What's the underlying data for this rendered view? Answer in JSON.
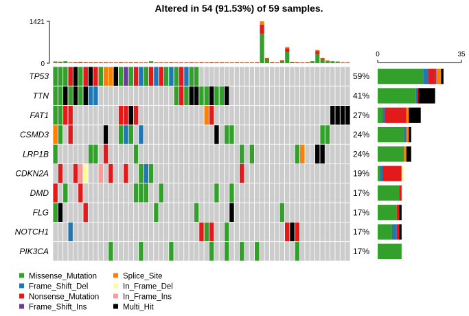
{
  "chart_data": {
    "type": "oncoplot",
    "title": "Altered in 54 (91.53%) of 59 samples.",
    "tmb_axis": {
      "min_label": "0",
      "max_label": "1421",
      "max": 1421
    },
    "gene_axis": {
      "min_label": "0",
      "max_label": "35",
      "max": 35
    },
    "genes": [
      {
        "name": "TP53",
        "pct": "59%"
      },
      {
        "name": "TTN",
        "pct": "41%"
      },
      {
        "name": "FAT1",
        "pct": "27%"
      },
      {
        "name": "CSMD3",
        "pct": "24%"
      },
      {
        "name": "LRP1B",
        "pct": "24%"
      },
      {
        "name": "CDKN2A",
        "pct": "19%"
      },
      {
        "name": "DMD",
        "pct": "17%"
      },
      {
        "name": "FLG",
        "pct": "17%"
      },
      {
        "name": "NOTCH1",
        "pct": "17%"
      },
      {
        "name": "PIK3CA",
        "pct": "17%"
      }
    ],
    "gene_bars": [
      {
        "Missense_Mutation": 19,
        "Frame_Shift_Del": 2,
        "Nonsense_Mutation": 3,
        "Frame_Shift_Ins": 0.5,
        "Splice_Site": 2,
        "Multi_Hit": 1
      },
      {
        "Missense_Mutation": 16,
        "Frame_Shift_Del": 0.5,
        "Nonsense_Mutation": 0.5,
        "Multi_Hit": 7
      },
      {
        "Missense_Mutation": 2,
        "Frame_Shift_Del": 1,
        "Nonsense_Mutation": 9,
        "Splice_Site": 1,
        "Multi_Hit": 5
      },
      {
        "Missense_Mutation": 11,
        "Frame_Shift_Del": 1,
        "Splice_Site": 1,
        "Multi_Hit": 1
      },
      {
        "Missense_Mutation": 11,
        "Splice_Site": 1,
        "Multi_Hit": 2
      },
      {
        "Missense_Mutation": 1,
        "Frame_Shift_Del": 1,
        "Nonsense_Mutation": 8,
        "In_Frame_Del": 1
      },
      {
        "Missense_Mutation": 9,
        "Nonsense_Mutation": 1
      },
      {
        "Missense_Mutation": 8,
        "Nonsense_Mutation": 1,
        "Multi_Hit": 1
      },
      {
        "Missense_Mutation": 6,
        "Frame_Shift_Del": 2,
        "Nonsense_Mutation": 1,
        "Multi_Hit": 1
      },
      {
        "Missense_Mutation": 10
      }
    ],
    "tmb": [
      60,
      55,
      65,
      35,
      45,
      50,
      42,
      38,
      40,
      40,
      42,
      30,
      35,
      45,
      35,
      40,
      42,
      35,
      35,
      65,
      35,
      25,
      30,
      42,
      20,
      35,
      25,
      40,
      30,
      42,
      35,
      45,
      40,
      40,
      25,
      30,
      40,
      25,
      30,
      35,
      40,
      1421,
      180,
      45,
      30,
      100,
      550,
      50,
      40,
      30,
      40,
      70,
      450,
      180,
      90,
      70,
      60,
      30,
      30
    ],
    "matrix_codes": "M=Missense_Mutation F=Frame_Shift_Del N=Nonsense_Mutation I=Frame_Shift_Ins S=Splice_Site D=In_Frame_Del R=In_Frame_Ins H=Multi_Hit .=none",
    "matrix": [
      "MMMNHMNHNMSSHMIMNFMNFNMFMNFMM..............................",
      "MMHMHMHFF...............MNMHHMMHMMH.......................",
      "MMNN.........NNHN.............SN.......................HHHH",
      "SM.N......H..MFM.F..............H.MM.................MM...",
      "M......MM.N.....M....................M.M........MS..HH.....",
      ".N..NRD..R.N..N..MFM.................N....................",
      "N.M..N..........MMM..M..........M..M......................",
      "MH....N.............M.......M......H.........M...........",
      "...F.........................NMN..M...........NHN.........",
      "...........M.....M.....M.......M..M..M..M.......M........."
    ],
    "legend": [
      {
        "label": "Missense_Mutation",
        "color": "#33a02c"
      },
      {
        "label": "Splice_Site",
        "color": "#ff7f00"
      },
      {
        "label": "Frame_Shift_Del",
        "color": "#1f78b4"
      },
      {
        "label": "In_Frame_Del",
        "color": "#ffff99"
      },
      {
        "label": "Nonsense_Mutation",
        "color": "#e31a1c"
      },
      {
        "label": "In_Frame_Ins",
        "color": "#fb9a99"
      },
      {
        "label": "Frame_Shift_Ins",
        "color": "#6a3d9a"
      },
      {
        "label": "Multi_Hit",
        "color": "#000000"
      }
    ],
    "background_color": "#cccccc"
  }
}
